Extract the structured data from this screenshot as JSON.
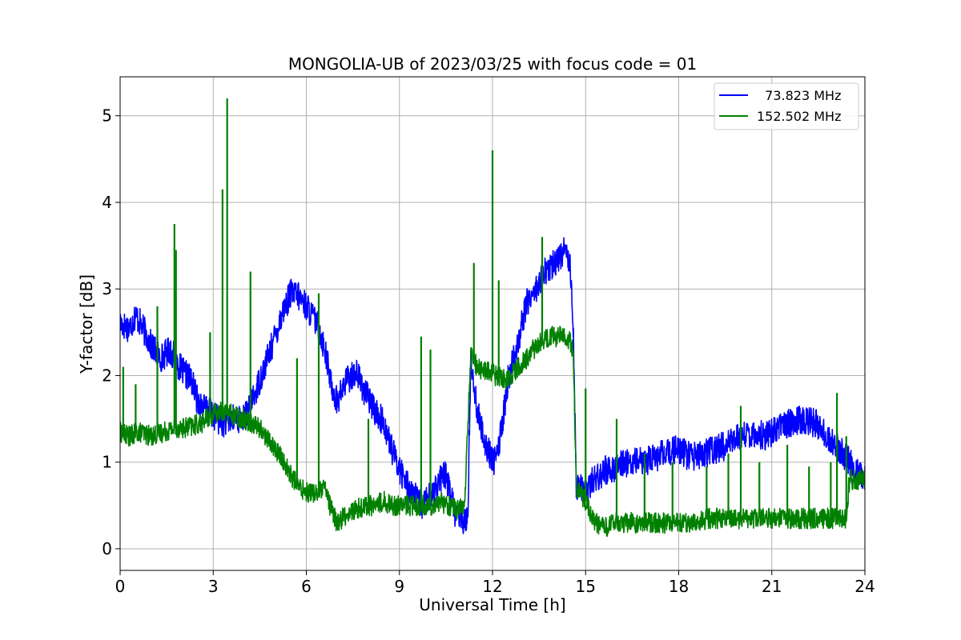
{
  "chart_data": {
    "type": "line",
    "title": "MONGOLIA-UB of 2023/03/25 with focus code = 01",
    "xlabel": "Universal Time [h]",
    "ylabel": "Y-factor [dB]",
    "xlim": [
      0,
      24
    ],
    "ylim": [
      -0.25,
      5.45
    ],
    "xticks": [
      0,
      3,
      6,
      9,
      12,
      15,
      18,
      21,
      24
    ],
    "xtick_labels": [
      "0",
      "3",
      "6",
      "9",
      "12",
      "15",
      "18",
      "21",
      "24"
    ],
    "yticks": [
      0,
      1,
      2,
      3,
      4,
      5
    ],
    "ytick_labels": [
      "0",
      "1",
      "2",
      "3",
      "4",
      "5"
    ],
    "grid": true,
    "legend_position": "upper right",
    "series": [
      {
        "name": "  73.823 MHz",
        "color": "#0000ff",
        "x": [
          0,
          0.3,
          0.5,
          0.8,
          1.0,
          1.3,
          1.6,
          2.0,
          2.3,
          2.5,
          2.8,
          3.0,
          3.3,
          3.6,
          4.0,
          4.3,
          4.6,
          4.9,
          5.2,
          5.5,
          5.8,
          6.1,
          6.4,
          6.6,
          6.8,
          7.0,
          7.3,
          7.6,
          7.9,
          8.2,
          8.5,
          8.8,
          9.1,
          9.4,
          9.7,
          10.0,
          10.2,
          10.5,
          10.8,
          11.0,
          11.2,
          11.3,
          11.5,
          11.7,
          11.9,
          12.1,
          12.3,
          12.5,
          12.8,
          13.1,
          13.4,
          13.7,
          14.0,
          14.3,
          14.5,
          14.6,
          14.7,
          15.0,
          15.3,
          15.6,
          16.0,
          16.4,
          16.8,
          17.2,
          17.6,
          18.0,
          18.4,
          18.8,
          19.2,
          19.6,
          20.0,
          20.4,
          20.8,
          21.2,
          21.6,
          22.0,
          22.4,
          22.8,
          23.2,
          23.5,
          23.8,
          24.0
        ],
        "values": [
          2.6,
          2.55,
          2.7,
          2.5,
          2.35,
          2.2,
          2.3,
          2.05,
          1.95,
          1.7,
          1.6,
          1.55,
          1.45,
          1.5,
          1.5,
          1.75,
          2.05,
          2.35,
          2.7,
          2.95,
          2.9,
          2.75,
          2.55,
          2.3,
          1.9,
          1.7,
          1.95,
          2.05,
          1.8,
          1.6,
          1.45,
          1.1,
          0.85,
          0.65,
          0.5,
          0.6,
          0.75,
          0.85,
          0.4,
          0.35,
          0.3,
          2.2,
          1.6,
          1.3,
          1.1,
          1.0,
          1.4,
          1.95,
          2.35,
          2.85,
          3.0,
          3.2,
          3.3,
          3.45,
          3.35,
          2.6,
          0.7,
          0.7,
          0.8,
          0.9,
          0.95,
          1.0,
          1.0,
          1.05,
          1.1,
          1.15,
          1.05,
          1.1,
          1.15,
          1.2,
          1.3,
          1.35,
          1.3,
          1.4,
          1.45,
          1.5,
          1.45,
          1.3,
          1.15,
          1.0,
          0.85,
          0.8
        ],
        "noise": 0.17,
        "spikes": []
      },
      {
        "name": "152.502 MHz",
        "color": "#008000",
        "x": [
          0,
          0.3,
          0.6,
          1.0,
          1.4,
          1.8,
          2.2,
          2.6,
          3.0,
          3.3,
          3.6,
          4.0,
          4.3,
          4.6,
          4.9,
          5.2,
          5.5,
          5.8,
          6.1,
          6.4,
          6.6,
          6.8,
          7.0,
          7.3,
          7.6,
          7.9,
          8.2,
          8.5,
          8.8,
          9.1,
          9.4,
          9.7,
          10.0,
          10.3,
          10.6,
          10.9,
          11.1,
          11.3,
          11.5,
          11.8,
          12.1,
          12.4,
          12.7,
          13.0,
          13.3,
          13.6,
          13.9,
          14.2,
          14.5,
          14.6,
          14.7,
          15.0,
          15.3,
          15.6,
          16.0,
          16.5,
          17.0,
          17.5,
          18.0,
          18.5,
          19.0,
          19.5,
          20.0,
          20.5,
          21.0,
          21.5,
          22.0,
          22.5,
          23.0,
          23.4,
          23.5,
          23.8,
          24.0
        ],
        "values": [
          1.35,
          1.3,
          1.35,
          1.3,
          1.35,
          1.4,
          1.4,
          1.45,
          1.55,
          1.6,
          1.55,
          1.5,
          1.45,
          1.35,
          1.2,
          1.05,
          0.85,
          0.7,
          0.65,
          0.65,
          0.7,
          0.45,
          0.3,
          0.4,
          0.45,
          0.5,
          0.5,
          0.55,
          0.5,
          0.5,
          0.5,
          0.5,
          0.5,
          0.55,
          0.5,
          0.45,
          0.5,
          2.25,
          2.1,
          2.05,
          2.0,
          1.95,
          2.05,
          2.15,
          2.3,
          2.4,
          2.45,
          2.45,
          2.4,
          2.3,
          0.7,
          0.55,
          0.3,
          0.25,
          0.3,
          0.3,
          0.3,
          0.3,
          0.3,
          0.3,
          0.35,
          0.35,
          0.35,
          0.35,
          0.35,
          0.35,
          0.35,
          0.35,
          0.35,
          0.35,
          0.8,
          0.8,
          0.8
        ],
        "noise": 0.12,
        "spikes": [
          [
            0.1,
            2.1
          ],
          [
            0.5,
            1.9
          ],
          [
            1.2,
            2.8
          ],
          [
            1.75,
            3.75
          ],
          [
            1.8,
            3.45
          ],
          [
            2.9,
            2.5
          ],
          [
            3.3,
            4.15
          ],
          [
            3.45,
            5.2
          ],
          [
            4.2,
            3.2
          ],
          [
            5.7,
            2.2
          ],
          [
            6.4,
            2.95
          ],
          [
            8.0,
            1.5
          ],
          [
            9.7,
            2.45
          ],
          [
            10.0,
            2.3
          ],
          [
            11.4,
            3.3
          ],
          [
            12.0,
            4.6
          ],
          [
            12.2,
            3.1
          ],
          [
            13.6,
            3.6
          ],
          [
            15.0,
            1.85
          ],
          [
            16.0,
            1.5
          ],
          [
            16.9,
            1.1
          ],
          [
            17.8,
            1.0
          ],
          [
            18.9,
            0.95
          ],
          [
            19.6,
            1.1
          ],
          [
            20.0,
            1.65
          ],
          [
            20.6,
            1.0
          ],
          [
            21.5,
            1.2
          ],
          [
            22.2,
            0.95
          ],
          [
            22.9,
            1.0
          ],
          [
            23.1,
            1.8
          ],
          [
            23.4,
            1.3
          ]
        ]
      }
    ]
  }
}
